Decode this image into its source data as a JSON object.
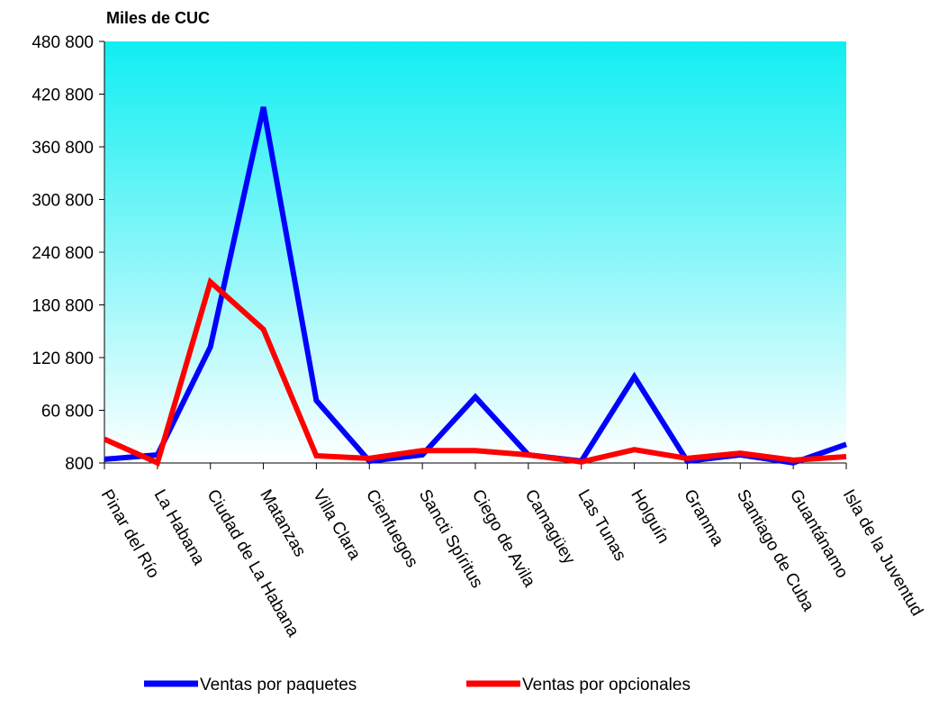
{
  "chart_data": {
    "type": "line",
    "ylabel": "Miles de CUC",
    "xlabel": "",
    "ylim": [
      800,
      480800
    ],
    "y_ticks": [
      "480 800",
      "420 800",
      "360 800",
      "300 800",
      "240 800",
      "180 800",
      "120 800",
      "60 800",
      "800"
    ],
    "y_tick_values": [
      480800,
      420800,
      360800,
      300800,
      240800,
      180800,
      120800,
      60800,
      800
    ],
    "categories": [
      "Pinar del Río",
      "La Habana",
      "Ciudad de La Habana",
      "Matanzas",
      "Villa Clara",
      "Cienfuegos",
      "Sancti Spíritus",
      "Ciego de Avila",
      "Camagüey",
      "Las Tunas",
      "Holguín",
      "Granma",
      "Santiago de Cuba",
      "Guantánamo",
      "Isla de la Juventud"
    ],
    "series": [
      {
        "name": "Ventas por paquetes",
        "color": "#0000FF",
        "values": [
          5000,
          10000,
          133000,
          406000,
          72000,
          3000,
          10000,
          76000,
          10000,
          3000,
          99000,
          3000,
          10000,
          1000,
          22000
        ]
      },
      {
        "name": "Ventas por opcionales",
        "color": "#FF0000",
        "values": [
          28000,
          1000,
          207000,
          153000,
          9000,
          6000,
          15000,
          15000,
          10000,
          2000,
          16000,
          6000,
          12000,
          4000,
          8000
        ]
      }
    ],
    "grid": false,
    "legend_position": "bottom",
    "plot_background": "cyan-to-white gradient"
  }
}
